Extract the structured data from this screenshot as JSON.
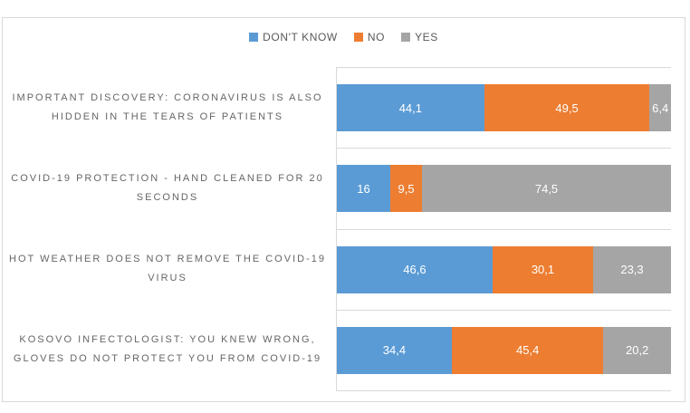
{
  "chart_data": {
    "type": "bar",
    "orientation": "horizontal",
    "stacked": true,
    "grid": "category-separators",
    "legend_position": "top-center",
    "xlim": [
      0,
      100
    ],
    "value_format": "comma-decimal",
    "categories": [
      "IMPORTANT DISCOVERY: CORONAVIRUS IS ALSO HIDDEN IN THE TEARS OF PATIENTS",
      "COVID-19 PROTECTION - HAND CLEANED FOR 20 SECONDS",
      "HOT WEATHER DOES NOT REMOVE THE COVID-19 VIRUS",
      "KOSOVO INFECTOLOGIST: YOU KNEW WRONG, GLOVES DO NOT PROTECT YOU FROM COVID-19"
    ],
    "series": [
      {
        "name": "DON'T KNOW",
        "color": "#5b9bd5",
        "values": [
          44.1,
          16,
          46.6,
          34.4
        ],
        "labels": [
          "44,1",
          "16",
          "46,6",
          "34,4"
        ]
      },
      {
        "name": "NO",
        "color": "#ed7d31",
        "values": [
          49.5,
          9.5,
          30.1,
          45.4
        ],
        "labels": [
          "49,5",
          "9,5",
          "30,1",
          "45,4"
        ]
      },
      {
        "name": "YES",
        "color": "#a5a5a5",
        "values": [
          6.4,
          74.5,
          23.3,
          20.2
        ],
        "labels": [
          "6,4",
          "74,5",
          "23,3",
          "20,2"
        ]
      }
    ]
  },
  "colors": {
    "frame_border": "#d9d9d9",
    "gridline": "#d9d9d9",
    "category_text": "#666666",
    "legend_text": "#595959",
    "data_label_text": "#ffffff",
    "background": "#ffffff"
  }
}
